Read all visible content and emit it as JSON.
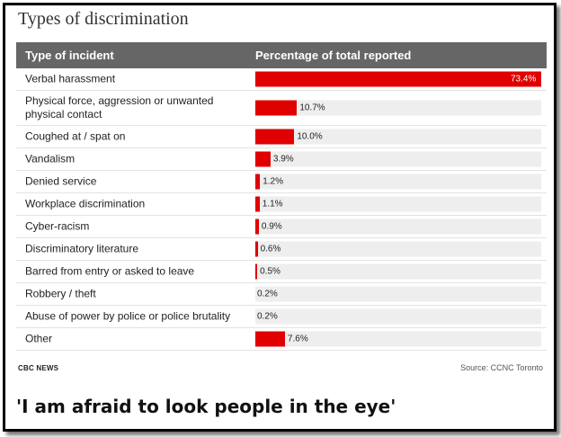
{
  "chart_data": {
    "type": "bar",
    "orientation": "horizontal",
    "title": "Types of discrimination",
    "column_headers": [
      "Type of incident",
      "Percentage of total reported"
    ],
    "categories": [
      "Verbal harassment",
      "Physical force, aggression or unwanted physical contact",
      "Coughed at / spat on",
      "Vandalism",
      "Denied service",
      "Workplace discrimination",
      "Cyber-racism",
      "Discriminatory literature",
      "Barred from entry or asked to leave",
      "Robbery / theft",
      "Abuse of power by police or police brutality",
      "Other"
    ],
    "values": [
      73.4,
      10.7,
      10.0,
      3.9,
      1.2,
      1.1,
      0.9,
      0.6,
      0.5,
      0.2,
      0.2,
      7.6
    ],
    "labels": [
      "73.4%",
      "10.7%",
      "10.0%",
      "3.9%",
      "1.2%",
      "1.1%",
      "0.9%",
      "0.6%",
      "0.5%",
      "0.2%",
      "0.2%",
      "7.6%"
    ],
    "xlim": [
      0,
      73.4
    ],
    "bar_color": "#e00000",
    "track_color": "#eeeeee"
  },
  "footer": {
    "brand": "CBC NEWS",
    "source": "Source: CCNC Toronto"
  },
  "headline": "'I am afraid to look people in the eye'"
}
